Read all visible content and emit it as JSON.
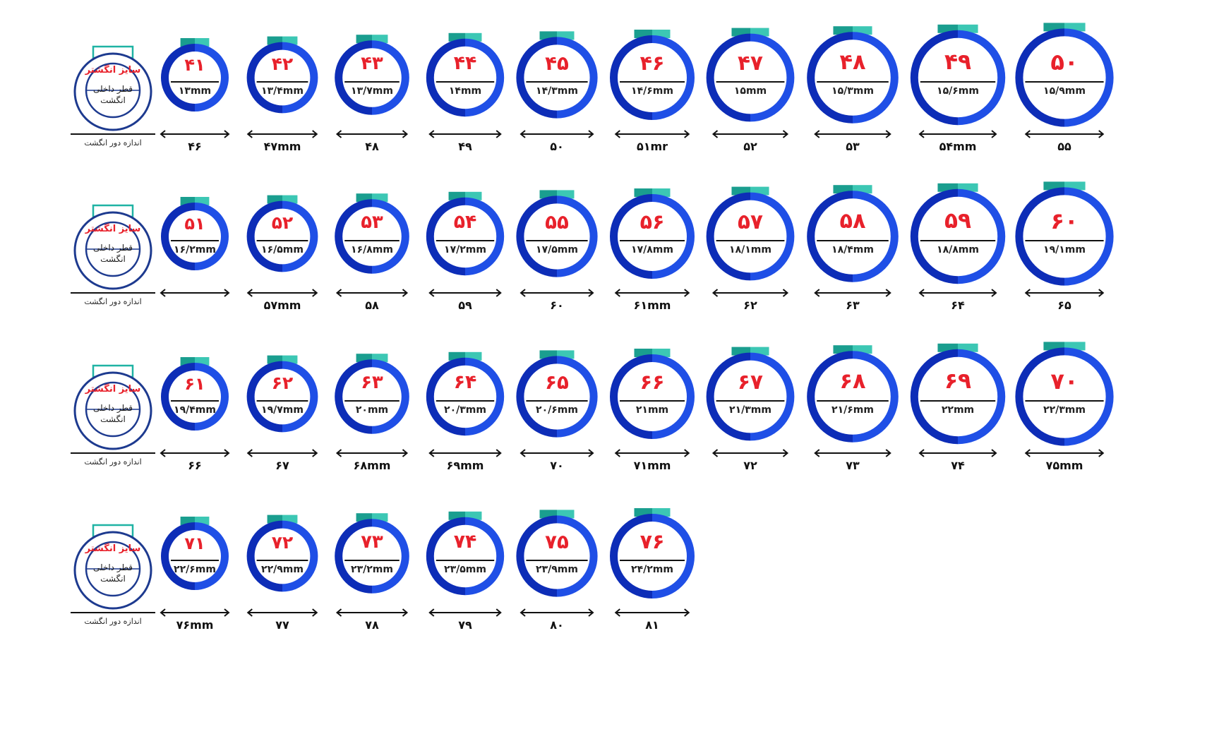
{
  "legend": {
    "top_text": "سایز انگشتر",
    "middle_text": "قطر داخلی انگشت",
    "bottom_text": "اندازه دور انگشت"
  },
  "colors": {
    "ring_dark": "#0d2db7",
    "ring_light": "#1f4fe6",
    "tab_teal": "#1a9e8f",
    "tab_light": "#3cc7b4",
    "size_red": "#e8212b",
    "legend_blue": "#1d3a8f",
    "legend_teal": "#1fb3a4"
  },
  "rows": [
    {
      "rings": [
        {
          "size": "۴۱",
          "diameter": "۱۳mm",
          "circumference": "۴۶"
        },
        {
          "size": "۴۲",
          "diameter": "۱۳/۴mm",
          "circumference": "۴۷mm"
        },
        {
          "size": "۴۳",
          "diameter": "۱۳/۷mm",
          "circumference": "۴۸"
        },
        {
          "size": "۴۴",
          "diameter": "۱۴mm",
          "circumference": "۴۹"
        },
        {
          "size": "۴۵",
          "diameter": "۱۴/۳mm",
          "circumference": "۵۰"
        },
        {
          "size": "۴۶",
          "diameter": "۱۴/۶mm",
          "circumference": "۵۱mr"
        },
        {
          "size": "۴۷",
          "diameter": "۱۵mm",
          "circumference": "۵۲"
        },
        {
          "size": "۴۸",
          "diameter": "۱۵/۳mm",
          "circumference": "۵۳"
        },
        {
          "size": "۴۹",
          "diameter": "۱۵/۶mm",
          "circumference": "۵۴mm"
        },
        {
          "size": "۵۰",
          "diameter": "۱۵/۹mm",
          "circumference": "۵۵"
        }
      ]
    },
    {
      "rings": [
        {
          "size": "۵۱",
          "diameter": "۱۶/۲mm",
          "circumference": ""
        },
        {
          "size": "۵۲",
          "diameter": "۱۶/۵mm",
          "circumference": "۵۷mm"
        },
        {
          "size": "۵۳",
          "diameter": "۱۶/۸mm",
          "circumference": "۵۸"
        },
        {
          "size": "۵۴",
          "diameter": "۱۷/۲mm",
          "circumference": "۵۹"
        },
        {
          "size": "۵۵",
          "diameter": "۱۷/۵mm",
          "circumference": "۶۰"
        },
        {
          "size": "۵۶",
          "diameter": "۱۷/۸mm",
          "circumference": "۶۱mm"
        },
        {
          "size": "۵۷",
          "diameter": "۱۸/۱mm",
          "circumference": "۶۲"
        },
        {
          "size": "۵۸",
          "diameter": "۱۸/۴mm",
          "circumference": "۶۳"
        },
        {
          "size": "۵۹",
          "diameter": "۱۸/۸mm",
          "circumference": "۶۴"
        },
        {
          "size": "۶۰",
          "diameter": "۱۹/۱mm",
          "circumference": "۶۵"
        }
      ]
    },
    {
      "rings": [
        {
          "size": "۶۱",
          "diameter": "۱۹/۴mm",
          "circumference": "۶۶"
        },
        {
          "size": "۶۲",
          "diameter": "۱۹/۷mm",
          "circumference": "۶۷"
        },
        {
          "size": "۶۳",
          "diameter": "۲۰mm",
          "circumference": "۶۸mm"
        },
        {
          "size": "۶۴",
          "diameter": "۲۰/۳mm",
          "circumference": "۶۹mm"
        },
        {
          "size": "۶۵",
          "diameter": "۲۰/۶mm",
          "circumference": "۷۰"
        },
        {
          "size": "۶۶",
          "diameter": "۲۱mm",
          "circumference": "۷۱mm"
        },
        {
          "size": "۶۷",
          "diameter": "۲۱/۳mm",
          "circumference": "۷۲"
        },
        {
          "size": "۶۸",
          "diameter": "۲۱/۶mm",
          "circumference": "۷۳"
        },
        {
          "size": "۶۹",
          "diameter": "۲۲mm",
          "circumference": "۷۴"
        },
        {
          "size": "۷۰",
          "diameter": "۲۲/۳mm",
          "circumference": "۷۵mm"
        }
      ]
    },
    {
      "rings": [
        {
          "size": "۷۱",
          "diameter": "۲۲/۶mm",
          "circumference": "۷۶mm"
        },
        {
          "size": "۷۲",
          "diameter": "۲۲/۹mm",
          "circumference": "۷۷"
        },
        {
          "size": "۷۳",
          "diameter": "۲۳/۲mm",
          "circumference": "۷۸"
        },
        {
          "size": "۷۴",
          "diameter": "۲۳/۵mm",
          "circumference": "۷۹"
        },
        {
          "size": "۷۵",
          "diameter": "۲۳/۹mm",
          "circumference": "۸۰"
        },
        {
          "size": "۷۶",
          "diameter": "۲۴/۲mm",
          "circumference": "۸۱"
        }
      ]
    }
  ]
}
